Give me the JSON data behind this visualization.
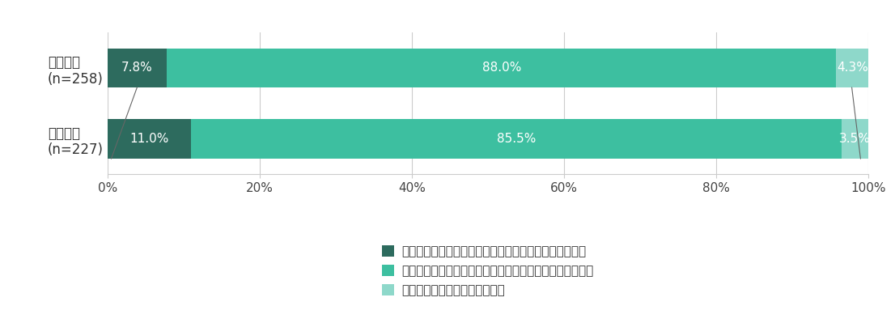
{
  "categories": [
    "前回調査\n(n=258)",
    "今回調査\n(n=227)"
  ],
  "series": [
    {
      "label": "リスクマネジメントに関する取り組みを専任としている",
      "values": [
        7.8,
        11.0
      ],
      "color": "#2d6b5e"
    },
    {
      "label": "リスクマネジメント以外の当該部署の業務を兼任している",
      "values": [
        88.0,
        85.5
      ],
      "color": "#3dbfa0"
    },
    {
      "label": "専任者と兼任者で協働している",
      "values": [
        4.3,
        3.5
      ],
      "color": "#8ed8ca"
    }
  ],
  "bar_height": 0.55,
  "xlim": [
    0,
    100
  ],
  "xticks": [
    0,
    20,
    40,
    60,
    80,
    100
  ],
  "xticklabels": [
    "0%",
    "20%",
    "40%",
    "60%",
    "80%",
    "100%"
  ],
  "background_color": "#ffffff",
  "label_color": "#ffffff",
  "label_fontsize": 11,
  "ytick_fontsize": 12,
  "xtick_fontsize": 11,
  "legend_fontsize": 11,
  "grid_color": "#cccccc",
  "annotation_color": "#555555",
  "line_color": "#666666"
}
